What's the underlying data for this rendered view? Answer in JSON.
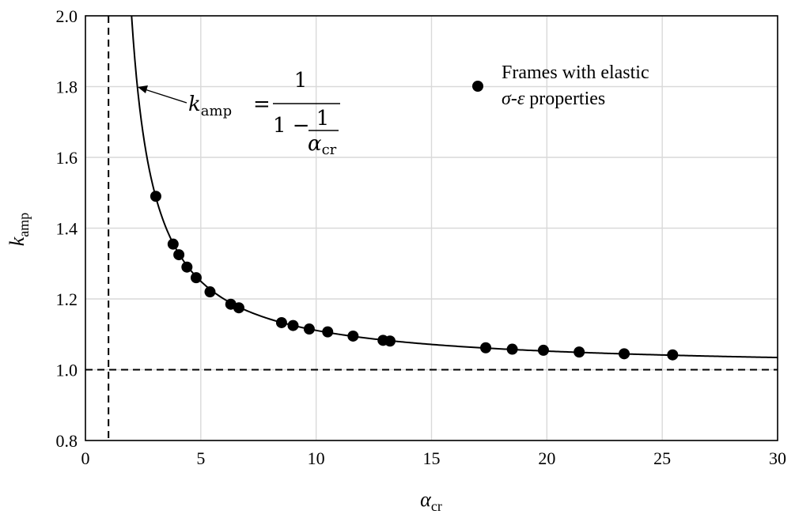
{
  "chart_data": {
    "type": "scatter",
    "xlim": [
      0,
      30
    ],
    "ylim": [
      0.8,
      2.0
    ],
    "x_ticks": [
      0,
      5,
      10,
      15,
      20,
      25,
      30
    ],
    "y_ticks": [
      0.8,
      1.0,
      1.2,
      1.4,
      1.6,
      1.8,
      2.0
    ],
    "x_tick_labels": [
      "0",
      "5",
      "10",
      "15",
      "20",
      "25",
      "30"
    ],
    "y_tick_labels": [
      "0.8",
      "1.0",
      "1.2",
      "1.4",
      "1.6",
      "1.8",
      "2.0"
    ],
    "xlabel": {
      "main": "α",
      "sub": "cr"
    },
    "ylabel": {
      "main": "k",
      "sub": "amp"
    },
    "grid": true,
    "legend": {
      "placement": "top-right",
      "line1": "Frames with elastic",
      "line2_italic": "σ-ε",
      "line2_rest": " properties"
    },
    "series": [
      {
        "name": "Frames with elastic σ-ε properties",
        "marker": "filled-circle",
        "color": "#000000",
        "x": [
          3.05,
          3.8,
          4.05,
          4.4,
          4.8,
          5.4,
          6.3,
          6.65,
          8.5,
          9.0,
          9.7,
          10.5,
          11.6,
          12.9,
          13.2,
          17.35,
          18.5,
          19.85,
          21.4,
          23.35,
          25.45
        ],
        "y": [
          1.49,
          1.355,
          1.325,
          1.29,
          1.26,
          1.22,
          1.185,
          1.175,
          1.133,
          1.125,
          1.115,
          1.107,
          1.095,
          1.083,
          1.081,
          1.062,
          1.058,
          1.055,
          1.05,
          1.045,
          1.042
        ]
      }
    ],
    "curve": {
      "formula": "k_amp = 1 / (1 - 1/α_cr)",
      "label_lhs_main": "k",
      "label_lhs_sub": "amp",
      "label_eq": "=",
      "label_numerator": "1",
      "label_den_one": "1 −",
      "label_inner_numerator": "1",
      "label_inner_den_main": "α",
      "label_inner_den_sub": "cr"
    },
    "reference_lines": [
      {
        "orientation": "vertical",
        "value": 1,
        "style": "dashed"
      },
      {
        "orientation": "horizontal",
        "value": 1.0,
        "style": "dashed"
      }
    ]
  }
}
